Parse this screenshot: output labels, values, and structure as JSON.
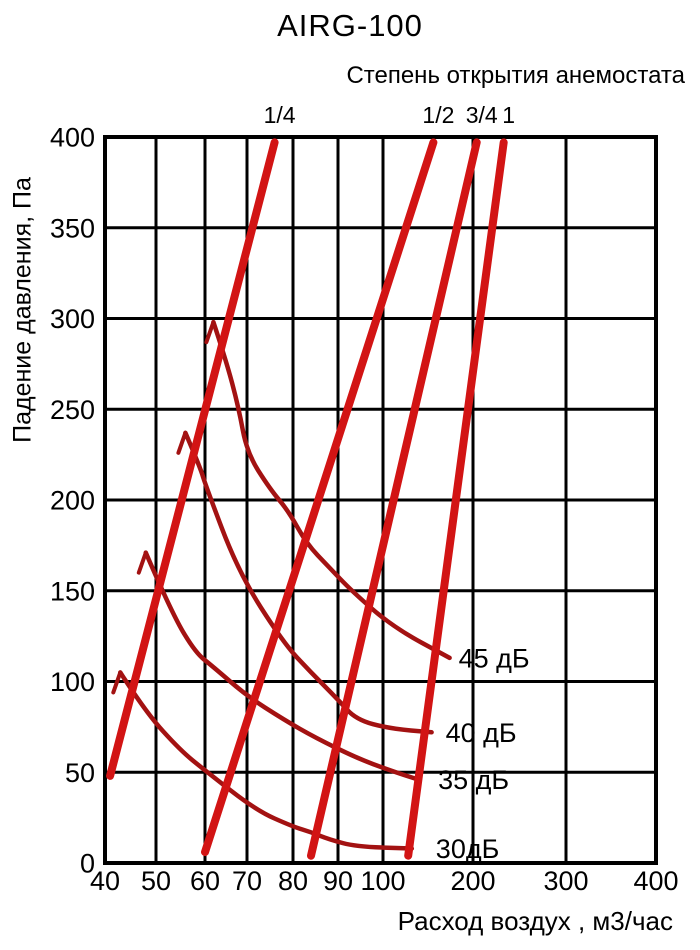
{
  "chart_data": {
    "type": "line",
    "title": "AIRG-100",
    "subtitle": "Степень открытия анемостата",
    "xlabel": "Расход воздух , м3/час",
    "ylabel": "Падение давления, Па",
    "x_scale": "quasi-log",
    "y_scale": "linear",
    "xlim": [
      40,
      400
    ],
    "ylim": [
      0,
      400
    ],
    "grid": true,
    "x_ticks": [
      40,
      50,
      60,
      70,
      80,
      90,
      100,
      200,
      300,
      400
    ],
    "y_ticks": [
      0,
      50,
      100,
      150,
      200,
      250,
      300,
      350,
      400
    ],
    "opening_lines": [
      {
        "label": "1/4",
        "points": [
          [
            41,
            48
          ],
          [
            76,
            397
          ]
        ]
      },
      {
        "label": "1/2",
        "points": [
          [
            60,
            6
          ],
          [
            156,
            397
          ]
        ]
      },
      {
        "label": "3/4",
        "points": [
          [
            84,
            4
          ],
          [
            204,
            397
          ]
        ]
      },
      {
        "label": "1",
        "points": [
          [
            128,
            4
          ],
          [
            233,
            397
          ]
        ]
      }
    ],
    "noise_curves": [
      {
        "label": "45 дБ",
        "points": [
          [
            62,
            298
          ],
          [
            65,
            277
          ],
          [
            68,
            251
          ],
          [
            70,
            226
          ],
          [
            75,
            206
          ],
          [
            79,
            194
          ],
          [
            83,
            176
          ],
          [
            88,
            163
          ],
          [
            93,
            150
          ],
          [
            111,
            130
          ],
          [
            174,
            113
          ]
        ]
      },
      {
        "label": "40 дБ",
        "points": [
          [
            56,
            237
          ],
          [
            59,
            218
          ],
          [
            60,
            209
          ],
          [
            68,
            160
          ],
          [
            78,
            121
          ],
          [
            84,
            105
          ],
          [
            90,
            90
          ],
          [
            94,
            79
          ],
          [
            108,
            74
          ],
          [
            154,
            72
          ]
        ]
      },
      {
        "label": "35 дБ",
        "points": [
          [
            48,
            171
          ],
          [
            53,
            139
          ],
          [
            58,
            116
          ],
          [
            62,
            108
          ],
          [
            70,
            92
          ],
          [
            78,
            79
          ],
          [
            85,
            69
          ],
          [
            94,
            58
          ],
          [
            108,
            51
          ],
          [
            139,
            46
          ]
        ]
      },
      {
        "label": "30дБ",
        "points": [
          [
            43,
            105
          ],
          [
            48,
            83
          ],
          [
            55,
            62
          ],
          [
            60,
            51
          ],
          [
            72,
            29
          ],
          [
            80,
            20
          ],
          [
            84,
            17
          ],
          [
            88,
            13
          ],
          [
            94,
            9
          ],
          [
            132,
            8
          ]
        ]
      }
    ],
    "colors": {
      "opening_lines": "#d21414",
      "noise_curves": "#a31212",
      "grid": "#000000",
      "text": "#000000",
      "background": "#ffffff"
    }
  }
}
